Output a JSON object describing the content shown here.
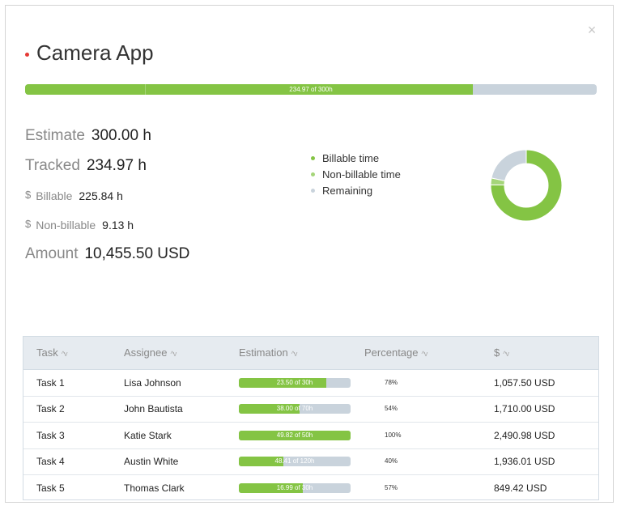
{
  "project": {
    "title": "Camera App",
    "close_glyph": "×",
    "progress_label": "234.97 of 300h",
    "progress_fraction": 0.783,
    "accent_color": "#84c444",
    "remaining_color": "#c9d3dc",
    "title_dot_color": "#e53935"
  },
  "stats": {
    "estimate": {
      "label": "Estimate",
      "value": "300.00 h"
    },
    "tracked": {
      "label": "Tracked",
      "value": "234.97 h"
    },
    "billable": {
      "currency": "$",
      "label": "Billable",
      "value": "225.84 h"
    },
    "nonbillable": {
      "currency": "$",
      "label": "Non-billable",
      "value": "9.13 h"
    },
    "amount": {
      "label": "Amount",
      "value": "10,455.50 USD"
    }
  },
  "legend": [
    {
      "label": "Billable time",
      "color": "#84c444"
    },
    {
      "label": "Non-billable time",
      "color": "#a5d57a"
    },
    {
      "label": "Remaining",
      "color": "#c9d3dc"
    }
  ],
  "chart_data": {
    "type": "pie",
    "categories": [
      "Billable time",
      "Non-billable time",
      "Remaining"
    ],
    "values": [
      225.84,
      9.13,
      65.03
    ],
    "colors": [
      "#84c444",
      "#a5d57a",
      "#c9d3dc"
    ]
  },
  "table": {
    "headers": {
      "task": "Task",
      "assignee": "Assignee",
      "estimation": "Estimation",
      "percentage": "Percentage",
      "amount": "$",
      "sort_glyph": "^v"
    },
    "rows": [
      {
        "task": "Task 1",
        "assignee": "Lisa Johnson",
        "estimation": "23.50 of 30h",
        "fraction": 0.78,
        "percentage": "78%",
        "amount": "1,057.50 USD"
      },
      {
        "task": "Task 2",
        "assignee": "John Bautista",
        "estimation": "38.00 of 70h",
        "fraction": 0.54,
        "percentage": "54%",
        "amount": "1,710.00 USD"
      },
      {
        "task": "Task 3",
        "assignee": "Katie Stark",
        "estimation": "49.82 of 50h",
        "fraction": 1.0,
        "percentage": "100%",
        "amount": "2,490.98 USD"
      },
      {
        "task": "Task 4",
        "assignee": "Austin White",
        "estimation": "48.41 of 120h",
        "fraction": 0.4,
        "percentage": "40%",
        "amount": "1,936.01 USD"
      },
      {
        "task": "Task 5",
        "assignee": "Thomas Clark",
        "estimation": "16.99 of 30h",
        "fraction": 0.57,
        "percentage": "57%",
        "amount": "849.42 USD"
      }
    ]
  }
}
